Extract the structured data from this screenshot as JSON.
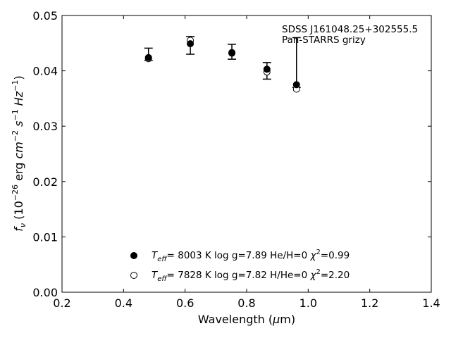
{
  "chart_data": {
    "type": "scatter",
    "xlabel_base": "Wavelength (",
    "xlabel_symbol": "μ",
    "xlabel_end": "m)",
    "ylabel_f": "f",
    "ylabel_sub": "ν",
    "ylabel_open": " (10",
    "ylabel_exp1": "−26",
    "ylabel_erg": " erg ",
    "ylabel_cm": "cm",
    "ylabel_exp2": "−2",
    "ylabel_s": " s",
    "ylabel_exp3": "−1",
    "ylabel_hz": " Hz",
    "ylabel_exp4": "−1",
    "ylabel_close": ")",
    "xlim": [
      0.2,
      1.4
    ],
    "ylim": [
      0.0,
      0.05
    ],
    "xticks": [
      "0.2",
      "0.4",
      "0.6",
      "0.8",
      "1.0",
      "1.2",
      "1.4"
    ],
    "yticks": [
      "0.00",
      "0.01",
      "0.02",
      "0.03",
      "0.04",
      "0.05"
    ],
    "annotation": [
      "SDSS J161048.25+302555.5",
      "Pan-STARRS grizy"
    ],
    "observed": {
      "x": [
        0.481,
        0.617,
        0.752,
        0.866,
        0.962
      ],
      "y": [
        0.0428,
        0.0451,
        0.0435,
        0.04,
        0.0375
      ],
      "yerr_low": [
        0.0419,
        0.043,
        0.0421,
        0.0385,
        0.037
      ],
      "yerr_high": [
        0.0441,
        0.0462,
        0.0448,
        0.0415,
        0.046
      ]
    },
    "series": [
      {
        "marker": "filled",
        "x": [
          0.481,
          0.617,
          0.752,
          0.866,
          0.962
        ],
        "y": [
          0.0424,
          0.0449,
          0.0433,
          0.0403,
          0.0375
        ],
        "label_parts": [
          "T",
          "eff",
          "=  8003 K  log g=7.89  He/H=0  ",
          "χ",
          "2",
          "=0.99"
        ]
      },
      {
        "marker": "open",
        "x": [
          0.481,
          0.617,
          0.752,
          0.866,
          0.962
        ],
        "y": [
          0.0422,
          0.0455,
          0.0432,
          0.0398,
          0.0367
        ],
        "label_parts": [
          "T",
          "eff",
          "=  7828 K  log g=7.82  H/He=0  ",
          "χ",
          "2",
          "=2.20"
        ]
      }
    ],
    "legend_location": "lower-center",
    "grid": false
  }
}
